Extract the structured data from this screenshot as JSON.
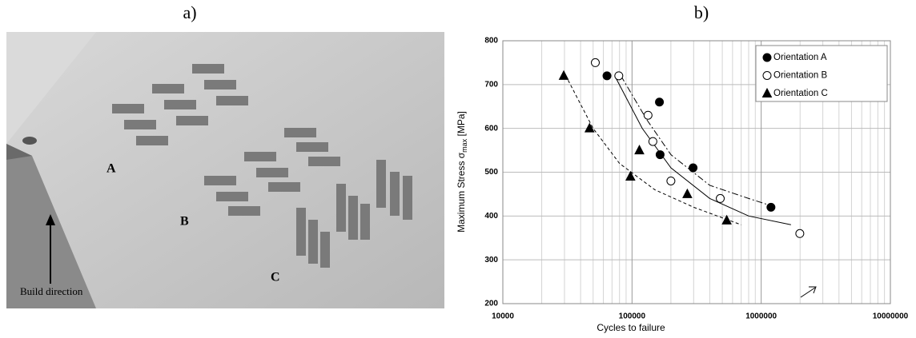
{
  "panel_labels": [
    "a)",
    "b)"
  ],
  "image": {
    "labels": [
      "A",
      "B",
      "C",
      "Build direction"
    ]
  },
  "chart_data": {
    "type": "scatter",
    "xlabel": "Cycles to failure",
    "ylabel": {
      "text": "Maximum  Stress σ",
      "sub": "max",
      "suffix": " [MPa]"
    },
    "xlog": true,
    "grid": true,
    "legend": "upper right",
    "xlim": [
      10000,
      10000000
    ],
    "xticks": [
      10000,
      100000,
      1000000,
      10000000
    ],
    "ylim": [
      200,
      800
    ],
    "yticks": [
      200,
      300,
      400,
      500,
      600,
      700,
      800
    ],
    "series": [
      {
        "name": "Orientation A",
        "marker": "circle",
        "color": "#000000",
        "fill": "#000000",
        "x": [
          64000,
          163000,
          165000,
          297000,
          1190000
        ],
        "values": [
          720,
          660,
          540,
          510,
          420
        ]
      },
      {
        "name": "Orientation B",
        "marker": "circle",
        "color": "#000000",
        "fill": "#ffffff",
        "x": [
          52000,
          79000,
          133000,
          145000,
          200000,
          482000,
          1990000
        ],
        "values": [
          750,
          720,
          630,
          570,
          480,
          440,
          360
        ]
      },
      {
        "name": "Orientation C",
        "marker": "triangle",
        "color": "#000000",
        "fill": "#000000",
        "x": [
          29600,
          46900,
          97200,
          114000,
          268000,
          541000
        ],
        "values": [
          720,
          600,
          490,
          550,
          450,
          390
        ]
      }
    ],
    "curves": [
      {
        "dash": "none",
        "x": [
          75000,
          120000,
          200000,
          400000,
          800000,
          1700000
        ],
        "values": [
          715,
          600,
          510,
          440,
          400,
          380
        ]
      },
      {
        "dash": "8 3 2 3",
        "x": [
          82000,
          130000,
          200000,
          400000,
          800000,
          1300000
        ],
        "values": [
          720,
          620,
          540,
          470,
          440,
          420
        ]
      },
      {
        "dash": "4 3",
        "x": [
          32000,
          50000,
          80000,
          150000,
          300000,
          700000
        ],
        "values": [
          710,
          600,
          520,
          460,
          420,
          380
        ]
      }
    ]
  }
}
